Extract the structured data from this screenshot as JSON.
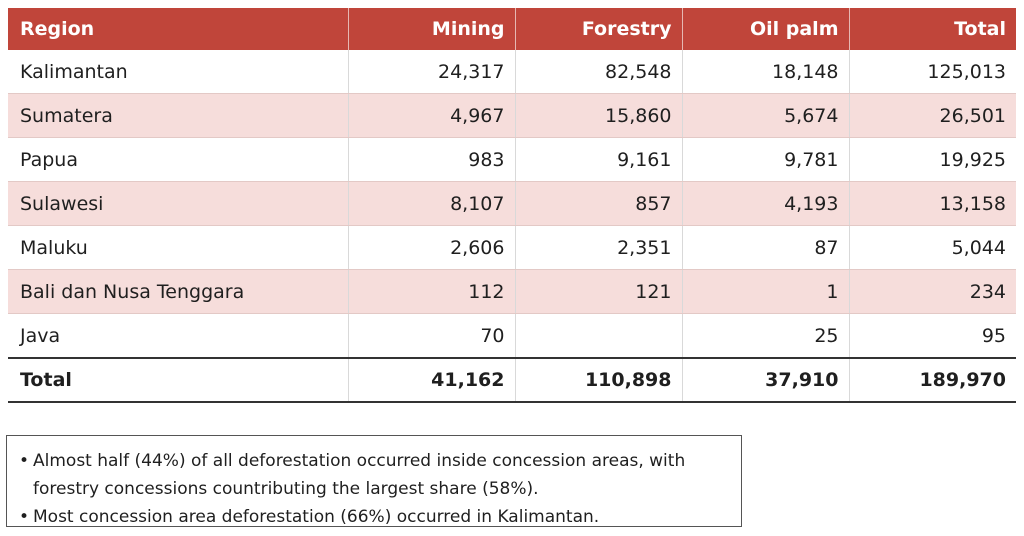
{
  "table": {
    "headers": [
      "Region",
      "Mining",
      "Forestry",
      "Oil palm",
      "Total"
    ],
    "rows": [
      {
        "region": "Kalimantan",
        "mining": "24,317",
        "forestry": "82,548",
        "oil_palm": "18,148",
        "total": "125,013"
      },
      {
        "region": "Sumatera",
        "mining": "4,967",
        "forestry": "15,860",
        "oil_palm": "5,674",
        "total": "26,501"
      },
      {
        "region": "Papua",
        "mining": "983",
        "forestry": "9,161",
        "oil_palm": "9,781",
        "total": "19,925"
      },
      {
        "region": "Sulawesi",
        "mining": "8,107",
        "forestry": "857",
        "oil_palm": "4,193",
        "total": "13,158"
      },
      {
        "region": "Maluku",
        "mining": "2,606",
        "forestry": "2,351",
        "oil_palm": "87",
        "total": "5,044"
      },
      {
        "region": "Bali dan Nusa Tenggara",
        "mining": "112",
        "forestry": "121",
        "oil_palm": "1",
        "total": "234"
      },
      {
        "region": "Java",
        "mining": "70",
        "forestry": "",
        "oil_palm": "25",
        "total": "95"
      }
    ],
    "total_row": {
      "region": "Total",
      "mining": "41,162",
      "forestry": "110,898",
      "oil_palm": "37,910",
      "total": "189,970"
    }
  },
  "notes": {
    "bullet": "•",
    "items": [
      "Almost half (44%) of all deforestation occurred inside concession areas, with forestry concessions countributing the largest share (58%).",
      "Most concession area deforestation (66%) occurred in Kalimantan."
    ]
  },
  "colors": {
    "header_bg": "#c0453a",
    "alt_row_bg": "#f6dddb"
  }
}
